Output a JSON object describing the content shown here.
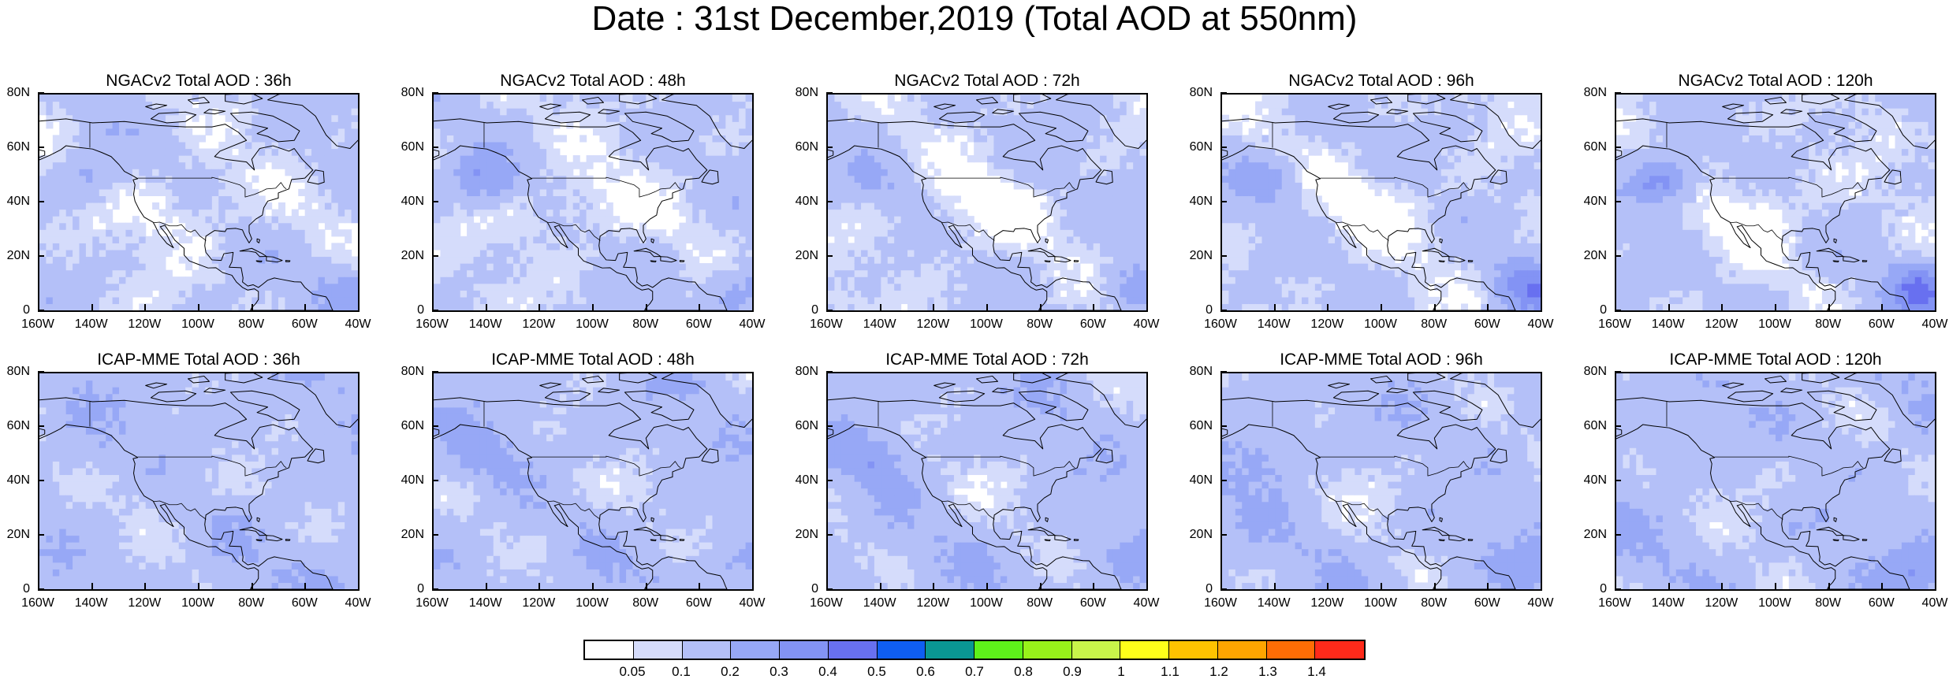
{
  "title": "Date : 31st December,2019 (Total AOD at 550nm)",
  "panels": [
    {
      "title": "NGACv2 Total AOD : 36h",
      "model": "NGACv2",
      "lead": "36h"
    },
    {
      "title": "NGACv2 Total AOD : 48h",
      "model": "NGACv2",
      "lead": "48h"
    },
    {
      "title": "NGACv2 Total AOD : 72h",
      "model": "NGACv2",
      "lead": "72h"
    },
    {
      "title": "NGACv2 Total AOD : 96h",
      "model": "NGACv2",
      "lead": "96h"
    },
    {
      "title": "NGACv2 Total AOD : 120h",
      "model": "NGACv2",
      "lead": "120h"
    },
    {
      "title": "ICAP-MME Total AOD : 36h",
      "model": "ICAP-MME",
      "lead": "36h"
    },
    {
      "title": "ICAP-MME Total AOD : 48h",
      "model": "ICAP-MME",
      "lead": "48h"
    },
    {
      "title": "ICAP-MME Total AOD : 72h",
      "model": "ICAP-MME",
      "lead": "72h"
    },
    {
      "title": "ICAP-MME Total AOD : 96h",
      "model": "ICAP-MME",
      "lead": "96h"
    },
    {
      "title": "ICAP-MME Total AOD : 120h",
      "model": "ICAP-MME",
      "lead": "120h"
    }
  ],
  "lat_ticks": [
    "80N",
    "60N",
    "40N",
    "20N",
    "0"
  ],
  "lon_ticks": [
    "160W",
    "140W",
    "120W",
    "100W",
    "80W",
    "60W",
    "40W"
  ],
  "colorbar": {
    "labels": [
      "0.05",
      "0.1",
      "0.2",
      "0.3",
      "0.4",
      "0.5",
      "0.6",
      "0.7",
      "0.8",
      "0.9",
      "1",
      "1.1",
      "1.2",
      "1.3",
      "1.4"
    ],
    "colors": [
      "#ffffff",
      "#d5dcfb",
      "#b4c0f8",
      "#97a8f6",
      "#8393f4",
      "#6870f0",
      "#0f5ef2",
      "#0a9793",
      "#5ef21a",
      "#98f21a",
      "#c9f54a",
      "#ffff1a",
      "#ffc300",
      "#ffa500",
      "#ff6d05",
      "#ff2a1a"
    ]
  },
  "chart_data": {
    "type": "heatmap",
    "variable": "Total AOD at 550nm",
    "date": "31st December,2019",
    "region": {
      "lon_range": [
        -160,
        -40
      ],
      "lat_range": [
        0,
        80
      ]
    },
    "rows": [
      "NGACv2",
      "ICAP-MME"
    ],
    "columns": [
      "36h",
      "48h",
      "72h",
      "96h",
      "120h"
    ],
    "levels": [
      0.05,
      0.1,
      0.2,
      0.3,
      0.4,
      0.5,
      0.6,
      0.7,
      0.8,
      0.9,
      1,
      1.1,
      1.2,
      1.3,
      1.4
    ],
    "panels": [
      {
        "model": "NGACv2",
        "lead": "36h",
        "dominant_range": "0.05-0.2",
        "max_range": "0.2-0.3",
        "max_regions": [
          "NE Pacific near 50N 140W",
          "western Atlantic 0-30N 60-40W"
        ]
      },
      {
        "model": "NGACv2",
        "lead": "48h",
        "dominant_range": "0.05-0.2",
        "max_range": "0.3-0.4",
        "max_regions": [
          "NE Pacific near 55N 145W",
          "Atlantic 10-25N 50-40W"
        ]
      },
      {
        "model": "NGACv2",
        "lead": "72h",
        "dominant_range": "0.05-0.2",
        "max_range": "0.2-0.3",
        "max_regions": [
          "Atlantic 5-30N 60-40W"
        ]
      },
      {
        "model": "NGACv2",
        "lead": "96h",
        "dominant_range": "0.1-0.2",
        "max_range": "0.3-0.4",
        "max_regions": [
          "Atlantic near 5N 45W",
          "NE Pacific near 50N 145W"
        ]
      },
      {
        "model": "NGACv2",
        "lead": "120h",
        "dominant_range": "0.1-0.2",
        "max_range": "0.4-0.5",
        "max_regions": [
          "NE Pacific near 45N 145W",
          "Atlantic near 5N 45W"
        ]
      },
      {
        "model": "ICAP-MME",
        "lead": "36h",
        "dominant_range": "0.1-0.2",
        "max_range": "0.1-0.2",
        "max_regions": []
      },
      {
        "model": "ICAP-MME",
        "lead": "48h",
        "dominant_range": "0.1-0.2",
        "max_range": "0.2-0.3",
        "max_regions": [
          "NE Pacific near 45N 145W"
        ]
      },
      {
        "model": "ICAP-MME",
        "lead": "72h",
        "dominant_range": "0.1-0.2",
        "max_range": "0.2-0.3",
        "max_regions": [
          "NE Pacific 35-50N 150-130W"
        ]
      },
      {
        "model": "ICAP-MME",
        "lead": "96h",
        "dominant_range": "0.1-0.2",
        "max_range": "0.2-0.3",
        "max_regions": [
          "NE Pacific near 50N 130W",
          "Atlantic near 40N 60W"
        ]
      },
      {
        "model": "ICAP-MME",
        "lead": "120h",
        "dominant_range": "0.1-0.2",
        "max_range": "0.2-0.3",
        "max_regions": [
          "Atlantic near 40N 55W",
          "Caribbean near 5N 50W"
        ]
      }
    ]
  }
}
